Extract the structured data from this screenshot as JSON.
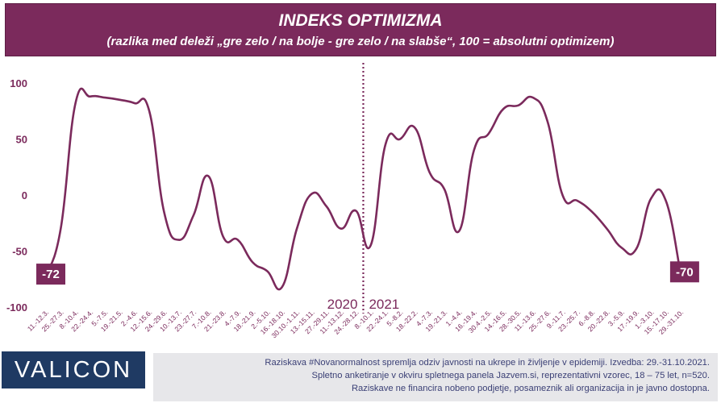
{
  "header": {
    "title": "INDEKS OPTIMIZMA",
    "subtitle": "(razlika med deleži „gre zelo / na bolje - gre zelo / na slabše“, 100 = absolutni optimizem)"
  },
  "colors": {
    "header_bg": "#7b2a5c",
    "line": "#7b2a5c",
    "tick_label": "#7b2a5c",
    "y_label": "#7b2a5c",
    "logo_bg": "#1f3a63",
    "footer_bg": "#e7e7ea",
    "footer_text": "#3a3f75"
  },
  "chart_data": {
    "type": "line",
    "title": "INDEKS OPTIMIZMA",
    "subtitle": "(razlika med deleži „gre zelo / na bolje - gre zelo / na slabše“, 100 = absolutni optimizem)",
    "ylim": [
      -100,
      100
    ],
    "yticks": [
      100,
      50,
      0,
      -50,
      -100
    ],
    "grid": false,
    "categories": [
      "11.-12.3.",
      "25.-27.3.",
      "8.-10.4.",
      "22.-24.4.",
      "5.-7.5.",
      "19.-21.5.",
      "2.-4.6.",
      "12.-15.6.",
      "24.-29.6.",
      "10.-13.7.",
      "23.-27.7.",
      "7.-10.8.",
      "21.-23.8.",
      "4.-7.9.",
      "18.-21.9.",
      "2.-5.10.",
      "16.-18.10.",
      "30.10.-1.11.",
      "13.-15.11.",
      "27.-29.11.",
      "11.-13.12.",
      "24.-28.12.",
      "8.-10.1.",
      "22.-24.1.",
      "5.-8.2.",
      "18.-22.2.",
      "4.-7.3.",
      "19.-21.3.",
      "1.-4.4.",
      "16.-19.4.",
      "30.4.-2.5.",
      "14.-16.5.",
      "28.-30.5.",
      "11.-13.6.",
      "25.-27.6.",
      "9.-11.7.",
      "23.-25.7.",
      "6.-8.8.",
      "20.-22.8.",
      "3.-5.9.",
      "17.-19.9.",
      "1.-3.10.",
      "15.-17.10.",
      "29.-31.10."
    ],
    "series": [
      {
        "values": [
          -72,
          -30,
          82,
          88,
          87,
          85,
          82,
          75,
          -15,
          -40,
          -18,
          17,
          -37,
          -40,
          -60,
          -68,
          -82,
          -30,
          1,
          -10,
          -30,
          -14,
          -45,
          45,
          50,
          60,
          20,
          5,
          -32,
          40,
          55,
          77,
          80,
          87,
          65,
          0,
          -5,
          -15,
          -30,
          -47,
          -48,
          -3,
          -5,
          -70
        ]
      }
    ],
    "annotations": {
      "divider_after_index": 21,
      "left_year": "2020",
      "right_year": "2021",
      "first_value_label": "-72",
      "last_value_label": "-70"
    }
  },
  "footer": {
    "logo": "VALICON",
    "lines": [
      "Raziskava #Novanormalnost spremlja odziv javnosti na ukrepe in življenje v epidemiji. Izvedba: 29.-31.10.2021.",
      "Spletno anketiranje v okviru spletnega panela Jazvem.si, reprezentativni vzorec, 18 – 75 let, n=520.",
      "Raziskave ne financira nobeno podjetje, posameznik ali organizacija in je javno dostopna."
    ]
  }
}
